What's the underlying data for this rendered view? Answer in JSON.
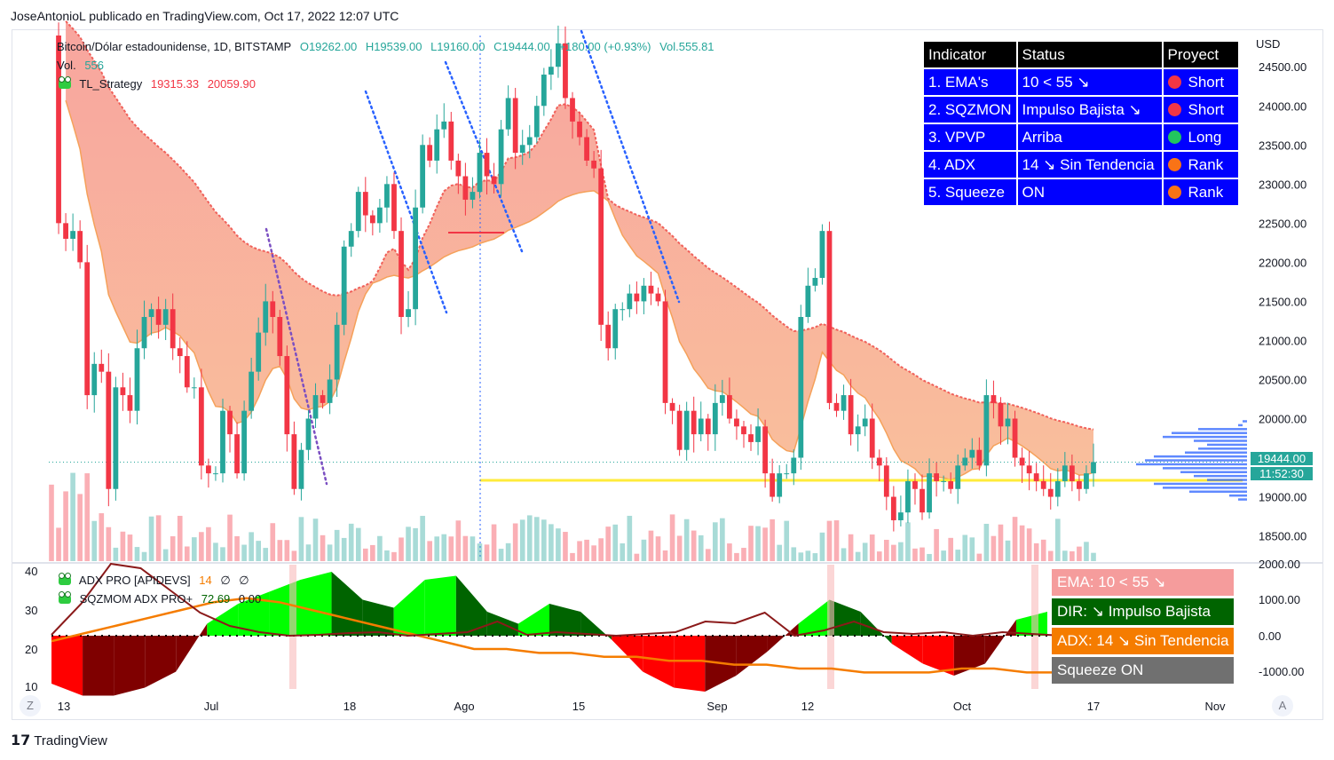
{
  "header": {
    "publisher": "JoseAntonioL publicado en TradingView.com, Oct 17, 2022 12:07 UTC"
  },
  "legend": {
    "symbol": "Bitcoin/Dólar estadounidense, 1D, BITSTAMP",
    "open": "O19262.00",
    "high": "H19539.00",
    "low": "L19160.00",
    "close": "C19444.00",
    "change": "+180.00 (+0.93%)",
    "volume": "Vol.555.81",
    "vol_label": "Vol.",
    "vol_value": "556",
    "strategy_name": "TL_Strategy",
    "strategy_v1": "19315.33",
    "strategy_v2": "20059.90"
  },
  "lower_legend": {
    "adx_name": "ADX PRO [APIDEVS]",
    "adx_v1": "14",
    "adx_v2": "∅",
    "adx_v3": "∅",
    "sqz_name": "SQZMOM ADX PRO+",
    "sqz_v1": "72.69",
    "sqz_v2": "0.00"
  },
  "indicator_table": {
    "headers": [
      "Indicator",
      "Status",
      "Proyect"
    ],
    "rows": [
      {
        "indicator": "1. EMA's",
        "status": "10 < 55 ↘",
        "proyect": "Short",
        "color": "#f23645"
      },
      {
        "indicator": "2. SQZMON",
        "status": "Impulso Bajista ↘",
        "proyect": "Short",
        "color": "#f23645"
      },
      {
        "indicator": "3. VPVP",
        "status": "Arriba",
        "proyect": "Long",
        "color": "#22c55e"
      },
      {
        "indicator": "4. ADX",
        "status": "14 ↘ Sin Tendencia",
        "proyect": "Rank",
        "color": "#f97316"
      },
      {
        "indicator": "5. Squeeze",
        "status": "ON",
        "proyect": "Rank",
        "color": "#f97316"
      }
    ]
  },
  "lower_panel_labels": [
    {
      "text": "EMA: 10 < 55 ↘",
      "color": "#f59c9c"
    },
    {
      "text": "DIR: ↘ Impulso Bajista",
      "color": "#006400"
    },
    {
      "text": "ADX: 14 ↘ Sin Tendencia",
      "color": "#f57c00"
    },
    {
      "text": "Squeeze ON",
      "color": "#707070"
    }
  ],
  "price_axis": {
    "currency": "USD",
    "ticks": [
      "24500.00",
      "24000.00",
      "23500.00",
      "23000.00",
      "22500.00",
      "22000.00",
      "21500.00",
      "21000.00",
      "20500.00",
      "20000.00",
      "19000.00",
      "18500.00"
    ],
    "last_price": "19444.00",
    "countdown": "11:52:30"
  },
  "lower_axis": {
    "right_ticks": [
      "2000.00",
      "1000.00",
      "0.00",
      "-1000.00"
    ],
    "left_ticks": [
      "40",
      "30",
      "20",
      "10"
    ]
  },
  "time_axis": {
    "labels": [
      "13",
      "Jul",
      "18",
      "Ago",
      "15",
      "Sep",
      "12",
      "Oct",
      "17",
      "Nov"
    ],
    "left_button": "Z",
    "right_button": "A"
  },
  "footer": {
    "brand": "TradingView"
  },
  "colors": {
    "up": "#26a69a",
    "down": "#f23645",
    "band_fill": "#f8a8a0",
    "band_orange": "#f7b277",
    "yellow_line": "#ffeb3b"
  },
  "chart_data": {
    "type": "candlestick",
    "symbol": "Bitcoin/Dólar estadounidense, 1D, BITSTAMP",
    "ylim": [
      18200,
      24900
    ],
    "x_labels": [
      "13",
      "Jul",
      "18",
      "Ago",
      "15",
      "Sep",
      "12",
      "Oct",
      "17",
      "Nov"
    ],
    "closes": [
      24900,
      22500,
      22300,
      22400,
      22000,
      20300,
      20700,
      20600,
      19100,
      20400,
      20300,
      20100,
      20900,
      21300,
      21400,
      21200,
      21400,
      20900,
      20800,
      20400,
      20400,
      19400,
      19300,
      19300,
      20100,
      19800,
      19300,
      20100,
      20600,
      21100,
      21500,
      21300,
      20800,
      19800,
      19100,
      19600,
      20000,
      20300,
      20200,
      20500,
      21200,
      22200,
      22400,
      22900,
      22600,
      22500,
      22700,
      23000,
      22400,
      21300,
      21400,
      22700,
      23500,
      23300,
      23700,
      23800,
      23300,
      23100,
      22800,
      22900,
      23400,
      23100,
      23000,
      23700,
      24100,
      23400,
      23500,
      23600,
      24000,
      24400,
      24500,
      24800,
      24100,
      23800,
      23600,
      23300,
      23200,
      21200,
      20900,
      21400,
      21400,
      21600,
      21500,
      21700,
      21600,
      21500,
      20200,
      20100,
      19600,
      20100,
      19800,
      20000,
      19800,
      20200,
      20300,
      20000,
      19900,
      19800,
      19700,
      19900,
      19300,
      19000,
      19300,
      19300,
      19500,
      21300,
      21700,
      21800,
      22400,
      20200,
      20100,
      20300,
      19800,
      19900,
      20000,
      19500,
      19400,
      19000,
      18700,
      18800,
      19200,
      19100,
      18800,
      19300,
      19200,
      19200,
      19100,
      19400,
      19500,
      19600,
      19400,
      20300,
      20200,
      19900,
      20000,
      19500,
      19400,
      19300,
      19200,
      19100,
      19000,
      19200,
      19400,
      19200,
      19100,
      19300,
      19444
    ],
    "bands": {
      "upper_ema_end": 20059.9,
      "lower_ema_end": 19315.33
    },
    "horizontal_level": 19210,
    "lower_panel": {
      "adx_series": [
        22,
        24,
        26,
        28,
        30,
        32,
        33,
        32,
        30,
        28,
        26,
        24,
        22,
        20,
        20,
        19,
        19,
        18,
        18,
        17,
        17,
        16,
        16,
        15,
        15,
        14,
        14,
        14,
        15,
        15,
        14,
        14,
        14
      ],
      "sqzmom_hist": [
        -1200,
        -1500,
        -1500,
        -1300,
        -900,
        300,
        800,
        1100,
        1400,
        1600,
        900,
        700,
        1400,
        1500,
        600,
        300,
        800,
        600,
        -100,
        -900,
        -1300,
        -1400,
        -1000,
        -400,
        300,
        900,
        600,
        -200,
        -700,
        -1000,
        -700,
        400,
        600
      ]
    }
  }
}
